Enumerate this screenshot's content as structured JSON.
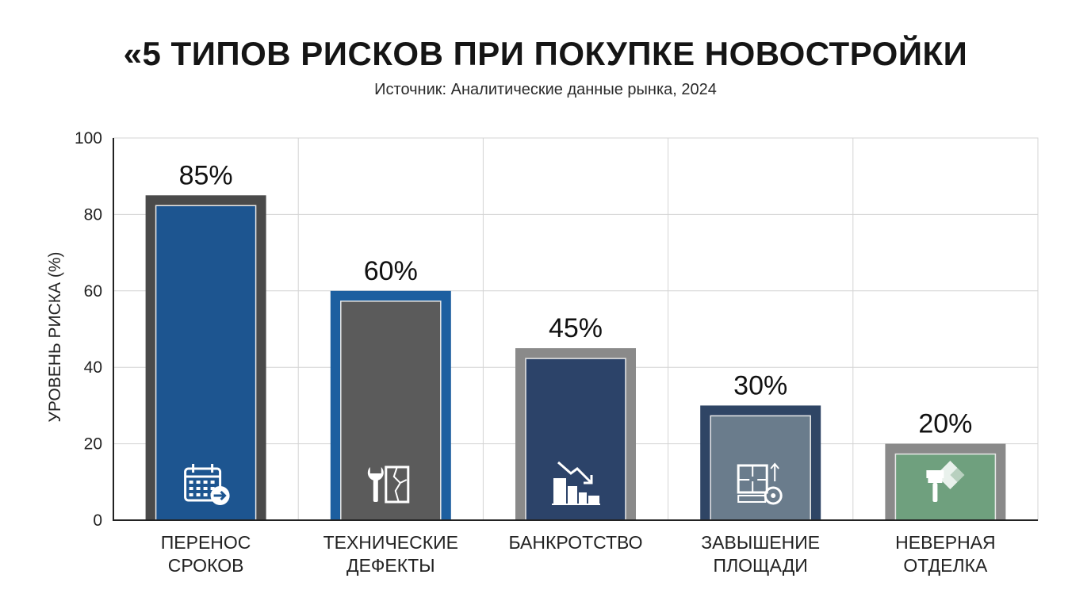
{
  "chart_data": {
    "type": "bar",
    "title": "«5 ТИПОВ РИСКОВ ПРИ ПОКУПКЕ НОВОСТРОЙКИ",
    "subtitle": "Источник: Аналитические данные рынка, 2024",
    "xlabel": "",
    "ylabel": "УРОВЕНЬ РИСКА (%)",
    "ylim": [
      0,
      100
    ],
    "yticks": [
      0,
      20,
      40,
      60,
      80,
      100
    ],
    "grid": true,
    "categories": [
      [
        "ПЕРЕНОС",
        "СРОКОВ"
      ],
      [
        "ТЕХНИЧЕСКИЕ",
        "ДЕФЕКТЫ"
      ],
      [
        "БАНКРОТСТВО"
      ],
      [
        "ЗАВЫШЕНИЕ",
        "ПЛОЩАДИ"
      ],
      [
        "НЕВЕРНАЯ",
        "ОТДЕЛКА"
      ]
    ],
    "values": [
      85,
      60,
      45,
      30,
      20
    ],
    "data_labels": [
      "85%",
      "60%",
      "45%",
      "30%",
      "20%"
    ],
    "bar_styles": [
      {
        "border": "#4a4a4a",
        "fill": "#1d5590",
        "icon": "calendar-arrow-icon"
      },
      {
        "border": "#1d5fa0",
        "fill": "#5b5b5b",
        "icon": "wrench-crack-icon"
      },
      {
        "border": "#8a8a8a",
        "fill": "#2c4369",
        "icon": "building-decline-icon"
      },
      {
        "border": "#2f4565",
        "fill": "#6a7c8c",
        "icon": "floorplan-measure-icon"
      },
      {
        "border": "#8a8a8a",
        "fill": "#6fa07e",
        "icon": "paint-brush-icon"
      }
    ]
  }
}
